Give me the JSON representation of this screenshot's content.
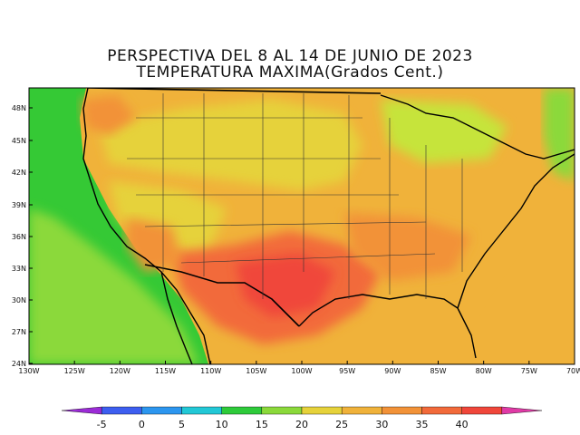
{
  "title_line1": "PERSPECTIVA DEL 8 AL 14 DE JUNIO DE 2023",
  "title_line2": "TEMPERATURA MAXIMA(Grados Cent.)",
  "map": {
    "lat_labels": [
      "48N",
      "45N",
      "42N",
      "39N",
      "36N",
      "33N",
      "30N",
      "27N",
      "24N"
    ],
    "lon_labels": [
      "130W",
      "125W",
      "120W",
      "115W",
      "110W",
      "105W",
      "100W",
      "95W",
      "90W",
      "85W",
      "80W",
      "75W",
      "70W"
    ],
    "colors": {
      "ocean_blue": "#3aa0e6",
      "cyan": "#22c8d6",
      "green": "#35c935",
      "light_green": "#8bd93a",
      "yellow_green": "#c6e43a",
      "yellow": "#e6d23a",
      "orange_yellow": "#f0b23a",
      "orange": "#f29238",
      "red_orange": "#f26a3a",
      "red": "#f0463a"
    }
  },
  "colorbar": {
    "ticks": [
      "-5",
      "0",
      "5",
      "10",
      "15",
      "20",
      "25",
      "30",
      "35",
      "40"
    ],
    "colors": [
      "#9b2bd6",
      "#3d5ef0",
      "#2c96ef",
      "#22c8d6",
      "#2ecb3a",
      "#8bd93a",
      "#e6d23a",
      "#f0b23a",
      "#f29238",
      "#f26a3a",
      "#f0463a",
      "#e03aa6"
    ]
  }
}
